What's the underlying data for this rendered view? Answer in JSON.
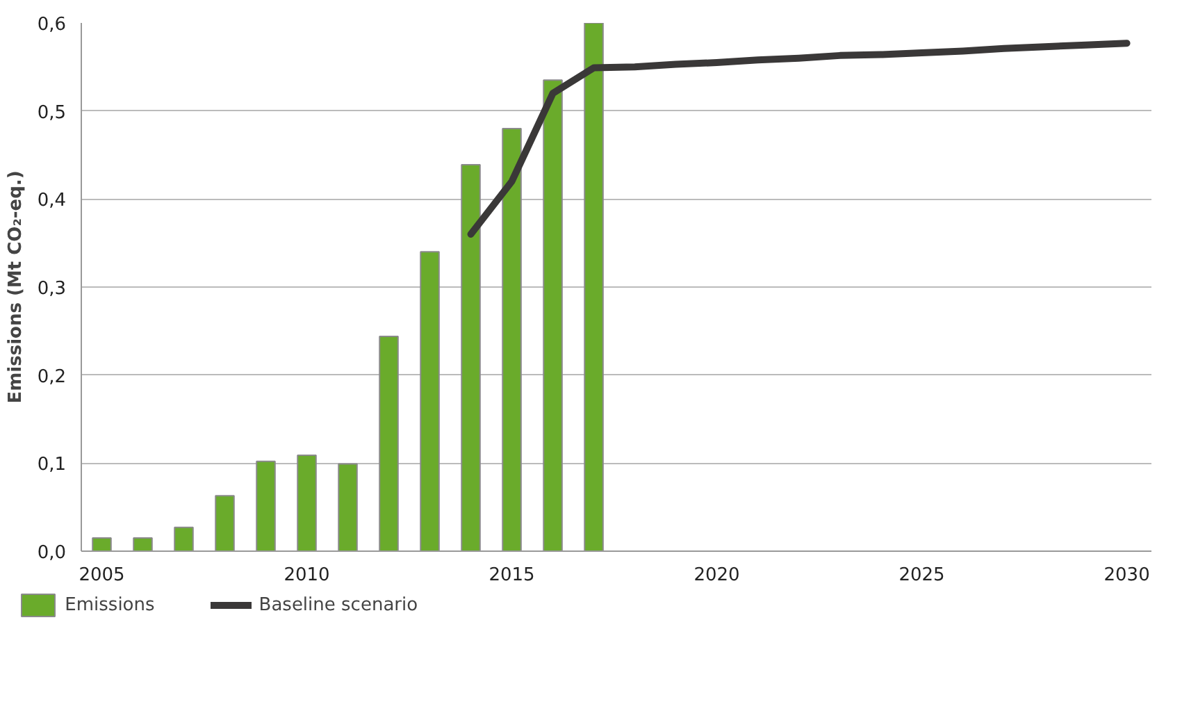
{
  "chart_data": {
    "type": "bar",
    "ylabel": "Emissions (Mt CO₂-eq.)",
    "xlim": [
      2004.5,
      2030.6
    ],
    "xticks": [
      2005,
      2010,
      2015,
      2020,
      2025,
      2030
    ],
    "ylim": [
      0,
      0.6
    ],
    "yticks": [
      {
        "value": 0,
        "label": "0,0"
      },
      {
        "value": 0.1,
        "label": "0,1"
      },
      {
        "value": 0.2,
        "label": "0,2"
      },
      {
        "value": 0.3,
        "label": "0,3"
      },
      {
        "value": 0.4,
        "label": "0,4"
      },
      {
        "value": 0.5,
        "label": "0,5"
      },
      {
        "value": 0.6,
        "label": "0,6"
      }
    ],
    "grid": "y",
    "legend": "bottom",
    "series": [
      {
        "name": "Emissions",
        "color": "#6aab2b",
        "x": [
          2005,
          2006,
          2007,
          2008,
          2009,
          2010,
          2011,
          2012,
          2013,
          2014,
          2015,
          2016,
          2017
        ],
        "values": [
          0.015,
          0.015,
          0.027,
          0.063,
          0.102,
          0.109,
          0.099,
          0.244,
          0.34,
          0.439,
          0.48,
          0.535,
          0.6
        ]
      },
      {
        "name": "Baseline scenario",
        "type": "line",
        "color": "#3a3838",
        "x": [
          2014,
          2015,
          2016,
          2017,
          2018,
          2019,
          2020,
          2021,
          2022,
          2023,
          2024,
          2025,
          2026,
          2027,
          2028,
          2029,
          2030
        ],
        "values": [
          0.36,
          0.42,
          0.52,
          0.549,
          0.55,
          0.553,
          0.555,
          0.558,
          0.56,
          0.563,
          0.564,
          0.566,
          0.568,
          0.571,
          0.573,
          0.575,
          0.577
        ]
      }
    ]
  }
}
